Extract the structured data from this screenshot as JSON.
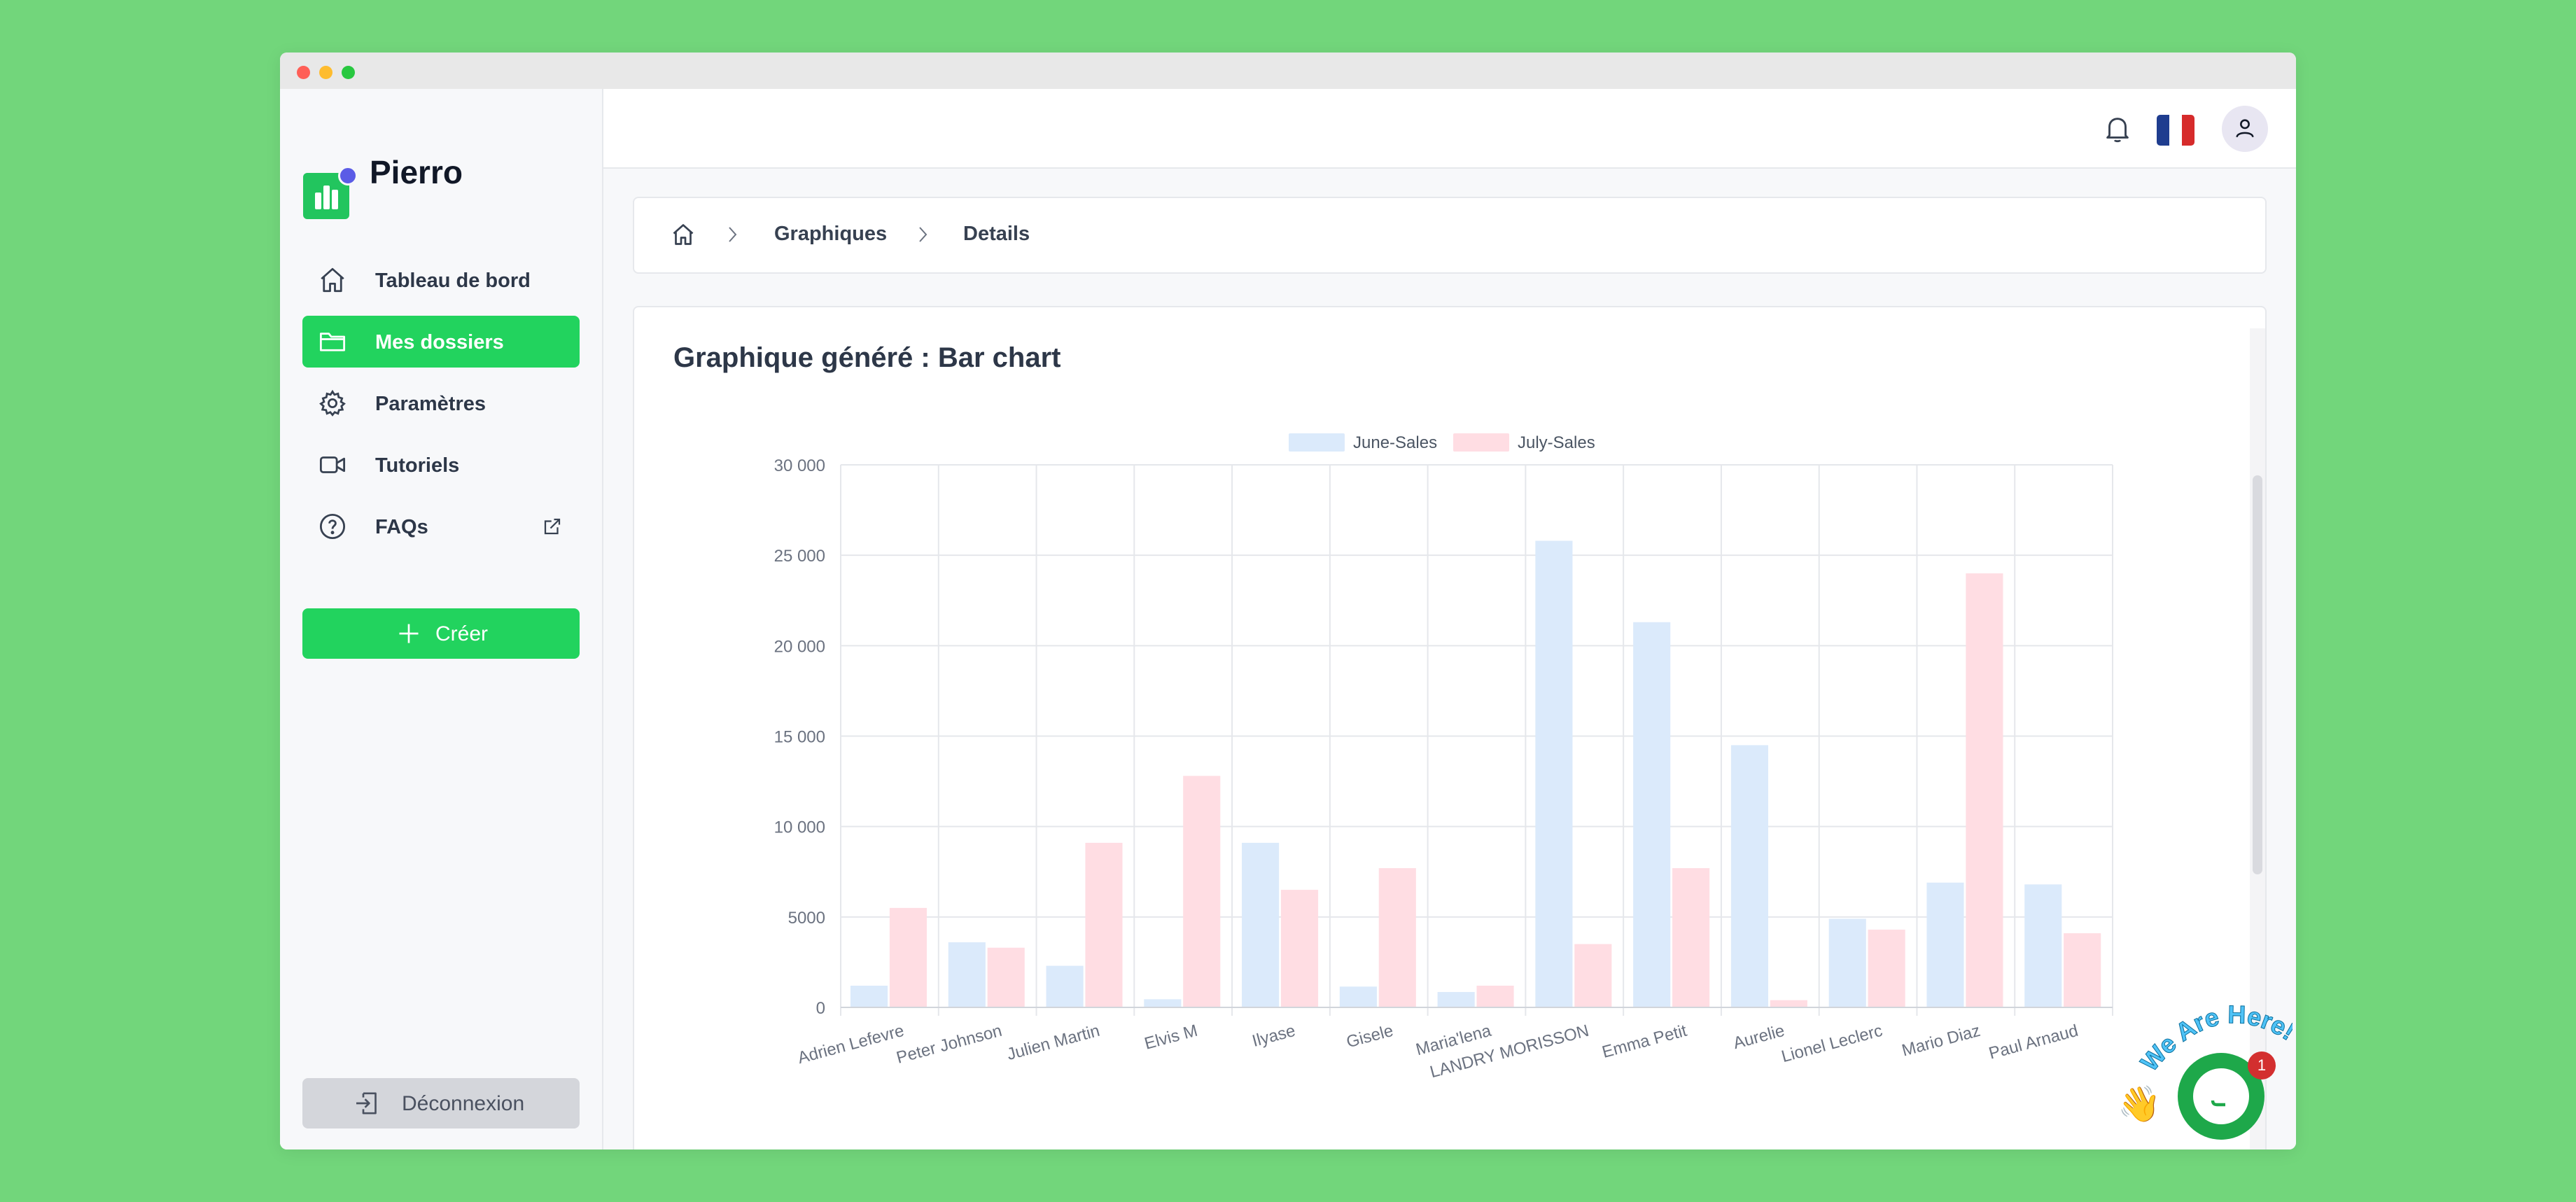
{
  "app": {
    "brand": "Pierro"
  },
  "sidebar": {
    "items": [
      {
        "label": "Tableau de bord",
        "icon": "home-icon",
        "active": false
      },
      {
        "label": "Mes dossiers",
        "icon": "folder-icon",
        "active": true
      },
      {
        "label": "Paramètres",
        "icon": "gear-icon",
        "active": false
      },
      {
        "label": "Tutoriels",
        "icon": "video-icon",
        "active": false
      },
      {
        "label": "FAQs",
        "icon": "help-circle-icon",
        "active": false
      }
    ],
    "create_label": "Créer",
    "logout_label": "Déconnexion"
  },
  "topbar": {
    "bell_icon": "bell-icon",
    "language": "fr-flag",
    "avatar_icon": "user-icon"
  },
  "breadcrumb": {
    "items": [
      "Graphiques",
      "Details"
    ]
  },
  "card": {
    "title": "Graphique généré : Bar chart"
  },
  "chat": {
    "label": "We Are Here!",
    "badge": "1"
  },
  "colors": {
    "accent": "#22d35e",
    "june": "#dbeafb",
    "july": "#ffdde3",
    "background": "#72d67b"
  },
  "chart_data": {
    "type": "bar",
    "title": "",
    "xlabel": "",
    "ylabel": "",
    "ylim": [
      0,
      30000
    ],
    "yticks": [
      0,
      5000,
      10000,
      15000,
      20000,
      25000,
      30000
    ],
    "ytick_labels": [
      "0",
      "5000",
      "10 000",
      "15 000",
      "20 000",
      "25 000",
      "30 000"
    ],
    "legend_position": "top-center",
    "grid": true,
    "categories": [
      "Adrien Lefevre",
      "Peter Johnson",
      "Julien Martin",
      "Elvis M",
      "Ilyase",
      "Gisele",
      "Maria'lena",
      "LANDRY MORISSON",
      "Emma Petit",
      "Aurelie",
      "Lionel Leclerc",
      "Mario Diaz",
      "Paul Arnaud"
    ],
    "series": [
      {
        "name": "June-Sales",
        "color": "#dbeafb",
        "values": [
          1200,
          3600,
          2300,
          450,
          9100,
          1150,
          850,
          25800,
          21300,
          14500,
          4900,
          6900,
          6800
        ]
      },
      {
        "name": "July-Sales",
        "color": "#ffdde3",
        "values": [
          5500,
          3300,
          9100,
          12800,
          6500,
          7700,
          1200,
          3500,
          7700,
          400,
          4300,
          24000,
          4100
        ]
      }
    ]
  }
}
